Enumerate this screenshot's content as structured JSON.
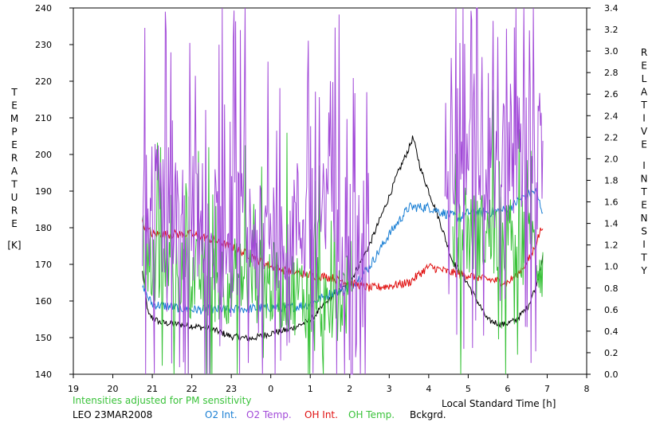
{
  "chart_data": {
    "type": "line",
    "x_axis": {
      "label": "Local Standard Time [h]",
      "ticks": [
        "19",
        "20",
        "21",
        "22",
        "23",
        "0",
        "1",
        "2",
        "3",
        "4",
        "5",
        "6",
        "7",
        "8"
      ],
      "range_hours": [
        19,
        32
      ]
    },
    "y_left": {
      "label": "TEMPERATURE [K]",
      "label_letters": [
        "T",
        "E",
        "M",
        "P",
        "E",
        "R",
        "A",
        "T",
        "U",
        "R",
        "E"
      ],
      "unit_label": "[K]",
      "range": [
        140,
        240
      ],
      "ticks": [
        "140",
        "150",
        "160",
        "170",
        "180",
        "190",
        "200",
        "210",
        "220",
        "230",
        "240"
      ]
    },
    "y_right": {
      "label_word1": [
        "R",
        "E",
        "L",
        "A",
        "T",
        "I",
        "V",
        "E"
      ],
      "label_word2": [
        "I",
        "N",
        "T",
        "E",
        "N",
        "S",
        "I",
        "T",
        "Y"
      ],
      "range": [
        0.0,
        3.4
      ],
      "ticks": [
        "0.0",
        "0.2",
        "0.4",
        "0.6",
        "0.8",
        "1.0",
        "1.2",
        "1.4",
        "1.6",
        "1.8",
        "2.0",
        "2.2",
        "2.4",
        "2.6",
        "2.8",
        "3.0",
        "3.2",
        "3.4"
      ]
    },
    "note": "Intensities adjusted for PM sensitivity",
    "station": "LEO 23MAR2008",
    "legend": [
      {
        "name": "O2 Int.",
        "color": "#1a7fd4"
      },
      {
        "name": "O2 Temp.",
        "color": "#a24ad8"
      },
      {
        "name": "OH Int.",
        "color": "#e01010"
      },
      {
        "name": "OH Temp.",
        "color": "#39c239"
      },
      {
        "name": "Bckgrd.",
        "color": "#000000"
      }
    ],
    "grid": false,
    "series": [
      {
        "name": "Bckgrd.",
        "axis": "right",
        "color": "#000000",
        "noise": 0.03,
        "t": [
          20.75,
          20.9,
          21.2,
          22.0,
          22.5,
          23.0,
          23.5,
          24.0,
          24.5,
          25.0,
          25.5,
          26.0,
          26.5,
          27.0,
          27.2,
          27.5,
          27.6,
          27.8,
          28.0,
          28.3,
          28.6,
          28.9,
          29.2,
          29.5,
          29.7,
          29.9,
          30.2,
          30.5,
          30.7,
          30.9
        ],
        "v": [
          0.95,
          0.55,
          0.48,
          0.45,
          0.42,
          0.35,
          0.33,
          0.38,
          0.42,
          0.5,
          0.7,
          0.85,
          1.2,
          1.65,
          1.85,
          2.1,
          2.2,
          1.9,
          1.7,
          1.4,
          1.05,
          0.9,
          0.7,
          0.5,
          0.48,
          0.46,
          0.5,
          0.62,
          0.8,
          1.1
        ]
      },
      {
        "name": "O2 Int.",
        "axis": "right",
        "color": "#1a7fd4",
        "noise": 0.045,
        "t": [
          20.75,
          21.0,
          22.0,
          23.0,
          24.0,
          24.5,
          25.0,
          25.5,
          26.0,
          26.5,
          27.0,
          27.5,
          28.0,
          28.5,
          28.8,
          29.0,
          29.5,
          30.0,
          30.4,
          30.7,
          30.9
        ],
        "v": [
          0.8,
          0.65,
          0.6,
          0.6,
          0.62,
          0.62,
          0.65,
          0.75,
          0.8,
          1.0,
          1.3,
          1.55,
          1.55,
          1.48,
          1.45,
          1.5,
          1.5,
          1.53,
          1.65,
          1.7,
          1.5
        ]
      },
      {
        "name": "OH Int.",
        "axis": "right",
        "color": "#e01010",
        "noise": 0.04,
        "t": [
          20.75,
          21.0,
          21.5,
          22.0,
          22.5,
          23.0,
          23.5,
          24.0,
          24.5,
          25.0,
          25.5,
          26.0,
          26.5,
          27.0,
          27.5,
          28.0,
          28.5,
          29.0,
          29.5,
          30.0,
          30.3,
          30.6,
          30.9
        ],
        "v": [
          1.4,
          1.3,
          1.3,
          1.3,
          1.25,
          1.18,
          1.1,
          1.0,
          0.95,
          0.92,
          0.9,
          0.85,
          0.8,
          0.82,
          0.85,
          1.0,
          0.95,
          0.92,
          0.88,
          0.85,
          0.95,
          1.1,
          1.4
        ]
      },
      {
        "name": "OH Temp.",
        "axis": "left",
        "color": "#39c239",
        "noise": 12,
        "spikes": 0.12,
        "gaps": [
          [
            26.05,
            28.6
          ]
        ],
        "t": [
          20.75,
          21.5,
          22.5,
          23.5,
          24.5,
          25.3,
          26.0,
          28.6,
          29.5,
          30.5,
          30.9
        ],
        "v": [
          172,
          168,
          165,
          166,
          163,
          160,
          162,
          178,
          178,
          176,
          170
        ]
      },
      {
        "name": "O2 Temp.",
        "axis": "left",
        "color": "#a24ad8",
        "noise": 18,
        "spikes": 0.3,
        "gaps": [
          [
            26.5,
            28.4
          ]
        ],
        "t": [
          20.75,
          21.5,
          22.5,
          23.5,
          24.5,
          25.5,
          26.5,
          28.4,
          29.0,
          29.5,
          30.0,
          30.5,
          30.9
        ],
        "v": [
          185,
          185,
          180,
          178,
          182,
          180,
          178,
          200,
          200,
          195,
          198,
          200,
          200
        ]
      }
    ]
  }
}
